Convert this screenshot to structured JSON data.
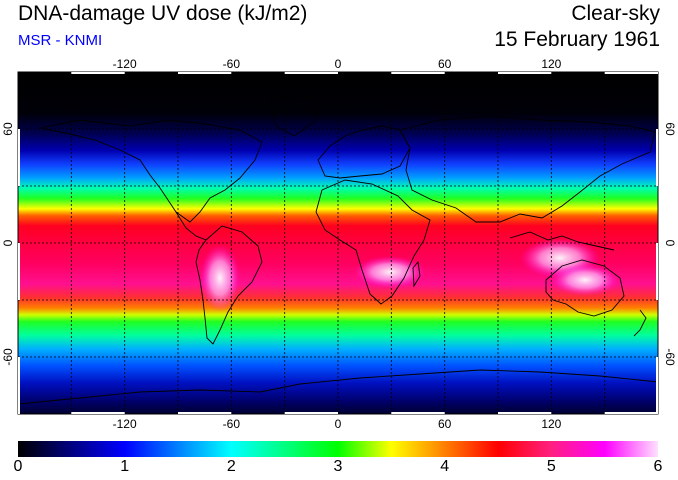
{
  "header": {
    "title": "DNA-damage UV dose (kJ/m2)",
    "subtitle": "MSR - KNMI",
    "sky_condition": "Clear-sky",
    "date": "15 February 1961"
  },
  "map": {
    "lon_ticks": [
      "-120",
      "-60",
      "0",
      "60",
      "120"
    ],
    "lon_tick_values": [
      -120,
      -60,
      0,
      60,
      120
    ],
    "lat_ticks": [
      "60",
      "0",
      "-60"
    ],
    "lat_tick_values": [
      60,
      0,
      -60
    ],
    "lon_range": [
      -180,
      180
    ],
    "lat_range": [
      -90,
      90
    ],
    "grid": "dashed every 30 degrees"
  },
  "colorbar": {
    "min": 0,
    "max": 6,
    "labels": [
      "0",
      "1",
      "2",
      "3",
      "4",
      "5",
      "6"
    ],
    "stops": [
      {
        "value": 0.0,
        "color": "#000000"
      },
      {
        "value": 0.5,
        "color": "#000080"
      },
      {
        "value": 1.0,
        "color": "#0000ff"
      },
      {
        "value": 1.5,
        "color": "#0080ff"
      },
      {
        "value": 2.0,
        "color": "#00ffff"
      },
      {
        "value": 2.5,
        "color": "#00ff80"
      },
      {
        "value": 3.0,
        "color": "#00ff00"
      },
      {
        "value": 3.5,
        "color": "#ffff00"
      },
      {
        "value": 4.0,
        "color": "#ff8000"
      },
      {
        "value": 4.5,
        "color": "#ff0000"
      },
      {
        "value": 5.0,
        "color": "#ff2080"
      },
      {
        "value": 5.5,
        "color": "#ff00ff"
      },
      {
        "value": 6.0,
        "color": "#ffe0ff"
      }
    ]
  }
}
